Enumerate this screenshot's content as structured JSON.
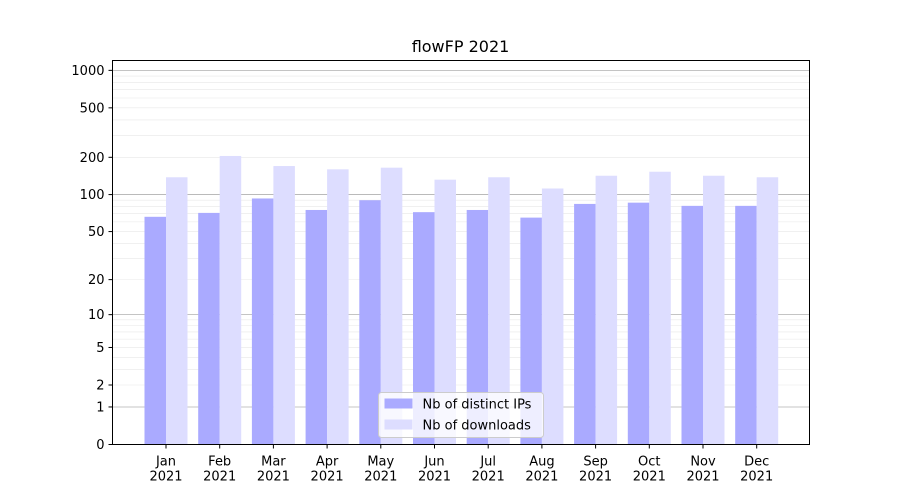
{
  "chart_data": {
    "type": "bar",
    "title": "flowFP 2021",
    "xlabel": "",
    "ylabel": "",
    "yscale": "log(1+y)",
    "ylim": [
      0,
      1200
    ],
    "yticks": [
      0,
      1,
      2,
      5,
      10,
      20,
      50,
      100,
      200,
      500,
      1000
    ],
    "grid": true,
    "legend_position": "bottom-center",
    "categories": [
      "Jan\n2021",
      "Feb\n2021",
      "Mar\n2021",
      "Apr\n2021",
      "May\n2021",
      "Jun\n2021",
      "Jul\n2021",
      "Aug\n2021",
      "Sep\n2021",
      "Oct\n2021",
      "Nov\n2021",
      "Dec\n2021"
    ],
    "series": [
      {
        "name": "Nb of distinct IPs",
        "color": "#aaaaff",
        "values": [
          66,
          71,
          93,
          75,
          90,
          72,
          75,
          65,
          84,
          86,
          81,
          81
        ]
      },
      {
        "name": "Nb of downloads",
        "color": "#ddddff",
        "values": [
          138,
          205,
          170,
          160,
          165,
          132,
          138,
          112,
          142,
          153,
          142,
          138
        ]
      }
    ]
  }
}
